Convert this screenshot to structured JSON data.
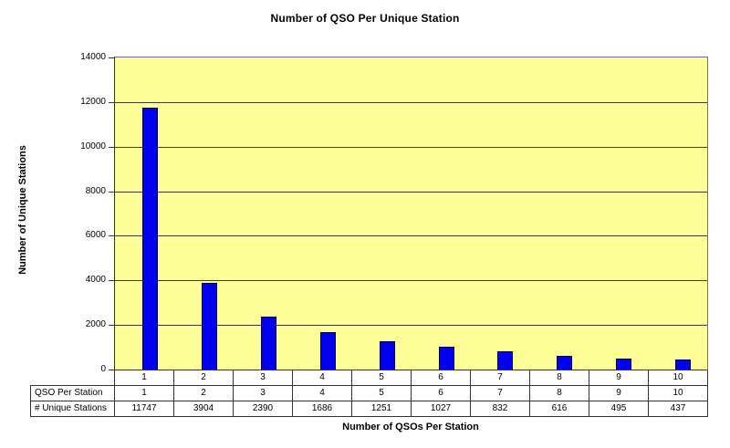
{
  "chart_data": {
    "type": "bar",
    "title": "Number of QSO Per Unique Station",
    "xlabel": "Number of QSOs Per Station",
    "ylabel": "Number of Unique Stations",
    "categories": [
      "1",
      "2",
      "3",
      "4",
      "5",
      "6",
      "7",
      "8",
      "9",
      "10"
    ],
    "series": [
      {
        "name": "QSO Per Station",
        "values": [
          1,
          2,
          3,
          4,
          5,
          6,
          7,
          8,
          9,
          10
        ],
        "plotted": false
      },
      {
        "name": "# Unique Stations",
        "values": [
          11747,
          3904,
          2390,
          1686,
          1251,
          1027,
          832,
          616,
          495,
          437
        ],
        "plotted": true
      }
    ],
    "ylim": [
      0,
      14000
    ],
    "yticks": [
      0,
      2000,
      4000,
      6000,
      8000,
      10000,
      12000,
      14000
    ],
    "grid": true,
    "legend": false,
    "data_table_shown": true,
    "colors": {
      "bar_fill": "#0000EE",
      "bar_border": "#000050",
      "plot_bg": "#FFFF99",
      "plot_border": "#6B6BAA",
      "axis_line": "#333333",
      "gridline": "#3D3D28",
      "page_bg": "#FFFFFF",
      "text": "#000000"
    }
  }
}
